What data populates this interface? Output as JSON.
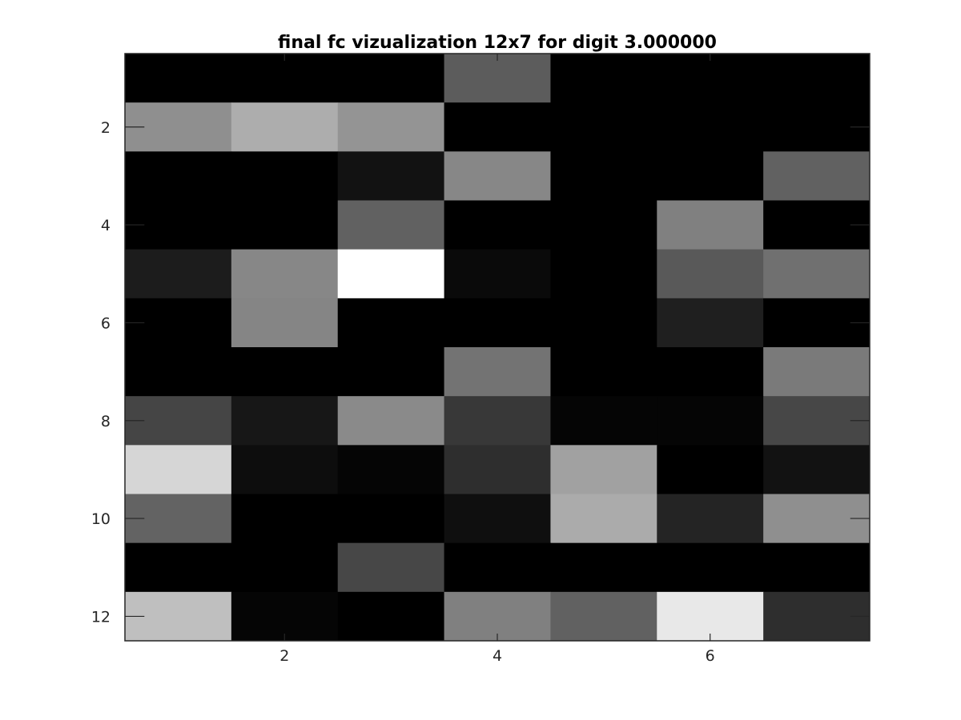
{
  "chart_data": {
    "type": "heatmap",
    "title": "final fc vizualization 12x7 for digit 3.000000",
    "xlabel": "",
    "ylabel": "",
    "colormap": "gray",
    "n_rows": 12,
    "n_cols": 7,
    "xlim": [
      0.5,
      7.5
    ],
    "ylim": [
      0.5,
      12.5
    ],
    "y_reversed": true,
    "x_ticks": [
      2,
      4,
      6
    ],
    "x_tick_labels": [
      "2",
      "4",
      "6"
    ],
    "y_ticks": [
      2,
      4,
      6,
      8,
      10,
      12
    ],
    "y_tick_labels": [
      "2",
      "4",
      "6",
      "8",
      "10",
      "12"
    ],
    "values": [
      [
        0.0,
        0.0,
        0.0,
        0.36,
        0.0,
        0.0,
        0.0
      ],
      [
        0.56,
        0.68,
        0.58,
        0.0,
        0.0,
        0.0,
        0.0
      ],
      [
        0.0,
        0.0,
        0.07,
        0.53,
        0.0,
        0.0,
        0.38
      ],
      [
        0.0,
        0.0,
        0.38,
        0.0,
        0.0,
        0.5,
        0.0
      ],
      [
        0.11,
        0.53,
        1.0,
        0.04,
        0.0,
        0.35,
        0.44
      ],
      [
        0.0,
        0.52,
        0.0,
        0.0,
        0.0,
        0.12,
        0.0
      ],
      [
        0.0,
        0.0,
        0.0,
        0.45,
        0.0,
        0.0,
        0.48
      ],
      [
        0.27,
        0.09,
        0.54,
        0.22,
        0.02,
        0.02,
        0.28
      ],
      [
        0.84,
        0.05,
        0.02,
        0.18,
        0.63,
        0.0,
        0.07
      ],
      [
        0.39,
        0.0,
        0.0,
        0.06,
        0.67,
        0.14,
        0.56
      ],
      [
        0.0,
        0.0,
        0.28,
        0.0,
        0.0,
        0.0,
        0.0
      ],
      [
        0.75,
        0.02,
        0.0,
        0.5,
        0.38,
        0.91,
        0.18
      ]
    ],
    "grid": false,
    "colorbar": false
  }
}
